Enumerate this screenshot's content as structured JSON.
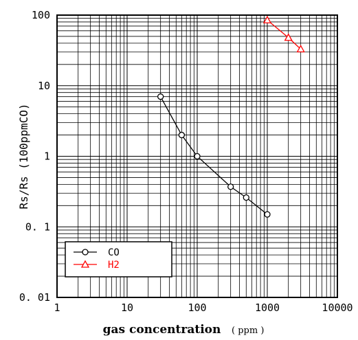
{
  "chart_data": {
    "type": "line",
    "xlabel": "gas concentration",
    "xlabel_unit": "( ppm )",
    "ylabel": "Rs/Rs (100ppmCO)",
    "x_scale": "log",
    "y_scale": "log",
    "xlim": [
      1,
      10000
    ],
    "ylim": [
      0.01,
      100
    ],
    "x_ticks": [
      {
        "value": 1,
        "label": "1"
      },
      {
        "value": 10,
        "label": "10"
      },
      {
        "value": 100,
        "label": "100"
      },
      {
        "value": 1000,
        "label": "1000"
      },
      {
        "value": 10000,
        "label": "10000"
      }
    ],
    "y_ticks": [
      {
        "value": 0.01,
        "label": "0. 01"
      },
      {
        "value": 0.1,
        "label": "0. 1"
      },
      {
        "value": 1,
        "label": "1"
      },
      {
        "value": 10,
        "label": "10"
      },
      {
        "value": 100,
        "label": "100"
      }
    ],
    "grid": true,
    "legend_position": "bottom-left",
    "series": [
      {
        "name": "CO",
        "color": "#000000",
        "marker": "circle",
        "x": [
          30,
          60,
          100,
          300,
          500,
          1000
        ],
        "y": [
          7.0,
          2.0,
          1.0,
          0.37,
          0.26,
          0.15
        ]
      },
      {
        "name": "H2",
        "color": "#ff0000",
        "marker": "triangle",
        "x": [
          1000,
          2000,
          3000
        ],
        "y": [
          85,
          48,
          33
        ]
      }
    ]
  }
}
